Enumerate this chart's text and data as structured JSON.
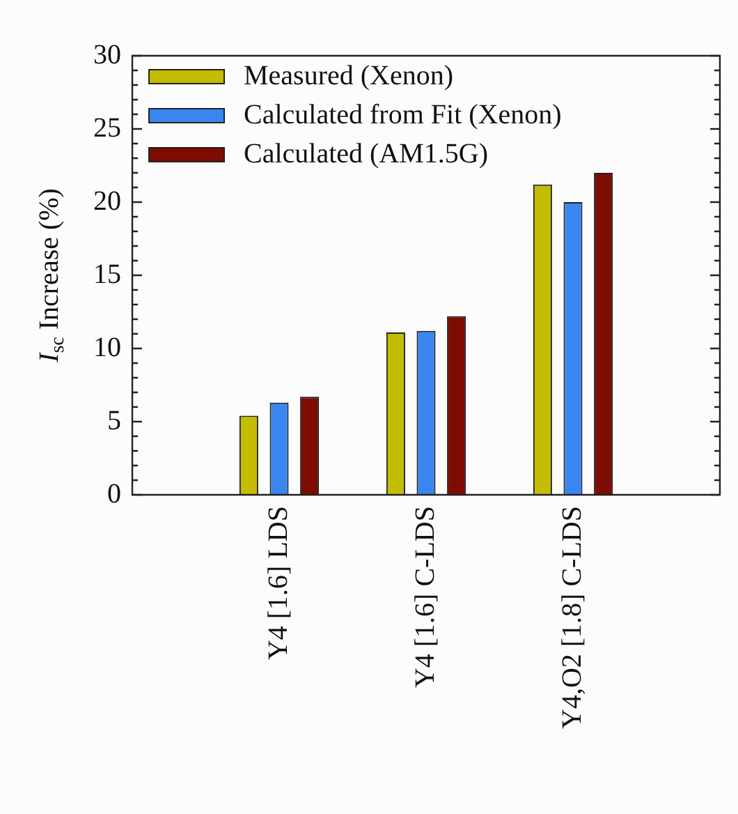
{
  "chart_data": {
    "type": "bar",
    "ylabel": "I$_{sc}$ Increase (%)",
    "categories": [
      "Y4 [1.6] LDS",
      "Y4 [1.6] C-LDS",
      "Y4,O2 [1.8] C-LDS"
    ],
    "series": [
      {
        "name": "Measured (Xenon)",
        "color": "#c4bc00",
        "values": [
          5.4,
          11.1,
          21.2
        ]
      },
      {
        "name": "Calculated from Fit (Xenon)",
        "color": "#3a86f0",
        "values": [
          6.3,
          11.2,
          20.0
        ]
      },
      {
        "name": "Calculated (AM1.5G)",
        "color": "#7f0c00",
        "values": [
          6.7,
          12.2,
          22.0
        ]
      }
    ],
    "ylim": [
      0,
      30
    ],
    "yticks": [
      0,
      5,
      10,
      15,
      20,
      25,
      30
    ],
    "grid": false,
    "legend": "top left"
  }
}
